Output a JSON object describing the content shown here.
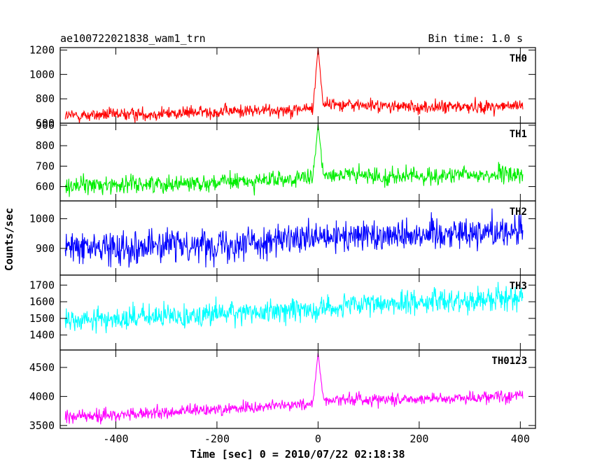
{
  "chart_data": {
    "type": "line",
    "title": "ae100722021838_wam1_trn",
    "subtitle": "Bin time: 1.0 s",
    "xlabel": "Time [sec] 0 = 2010/07/22 02:18:38",
    "ylabel": "Counts/sec",
    "xlim": [
      -510,
      430
    ],
    "xticks": [
      -400,
      -200,
      0,
      200,
      400
    ],
    "grid": false,
    "panels": [
      {
        "name": "TH0",
        "color": "#ff0000",
        "ylim": [
          600,
          1220
        ],
        "yticks": [
          600,
          800,
          1000,
          1200
        ],
        "series": {
          "x": [
            -500,
            -400,
            -300,
            -200,
            -100,
            -10,
            0,
            10,
            100,
            200,
            300,
            400
          ],
          "mean": [
            660,
            670,
            680,
            695,
            705,
            720,
            1220,
            760,
            745,
            730,
            735,
            740
          ],
          "noise": [
            45,
            45,
            45,
            45,
            45,
            45,
            0,
            45,
            45,
            45,
            45,
            45
          ]
        }
      },
      {
        "name": "TH1",
        "color": "#00ee00",
        "ylim": [
          530,
          910
        ],
        "yticks": [
          600,
          700,
          800,
          900
        ],
        "series": {
          "x": [
            -500,
            -400,
            -300,
            -200,
            -100,
            -10,
            0,
            10,
            100,
            200,
            300,
            400
          ],
          "mean": [
            605,
            610,
            615,
            620,
            630,
            640,
            905,
            665,
            650,
            650,
            655,
            660
          ],
          "noise": [
            35,
            35,
            35,
            35,
            35,
            35,
            0,
            35,
            35,
            35,
            35,
            35
          ]
        }
      },
      {
        "name": "TH2",
        "color": "#0000ff",
        "ylim": [
          810,
          1060
        ],
        "yticks": [
          900,
          1000
        ],
        "series": {
          "x": [
            -500,
            -400,
            -300,
            -200,
            -100,
            0,
            100,
            200,
            300,
            400
          ],
          "mean": [
            900,
            905,
            910,
            915,
            925,
            930,
            945,
            950,
            955,
            960
          ],
          "noise": [
            45,
            45,
            45,
            45,
            45,
            45,
            45,
            45,
            45,
            45
          ]
        }
      },
      {
        "name": "TH3",
        "color": "#00ffff",
        "ylim": [
          1310,
          1760
        ],
        "yticks": [
          1400,
          1500,
          1600,
          1700
        ],
        "series": {
          "x": [
            -500,
            -400,
            -300,
            -200,
            -100,
            0,
            100,
            200,
            300,
            400
          ],
          "mean": [
            1480,
            1500,
            1510,
            1530,
            1540,
            1560,
            1580,
            1600,
            1610,
            1630
          ],
          "noise": [
            60,
            60,
            60,
            60,
            60,
            60,
            60,
            60,
            60,
            60
          ]
        }
      },
      {
        "name": "TH0123",
        "color": "#ff00ff",
        "ylim": [
          3450,
          4800
        ],
        "yticks": [
          3500,
          4000,
          4500
        ],
        "series": {
          "x": [
            -500,
            -400,
            -300,
            -200,
            -100,
            -10,
            0,
            10,
            100,
            200,
            300,
            400
          ],
          "mean": [
            3650,
            3680,
            3720,
            3780,
            3830,
            3880,
            4750,
            3950,
            3950,
            3960,
            3980,
            4020
          ],
          "noise": [
            90,
            90,
            90,
            90,
            90,
            90,
            0,
            90,
            90,
            90,
            90,
            90
          ]
        }
      }
    ]
  }
}
